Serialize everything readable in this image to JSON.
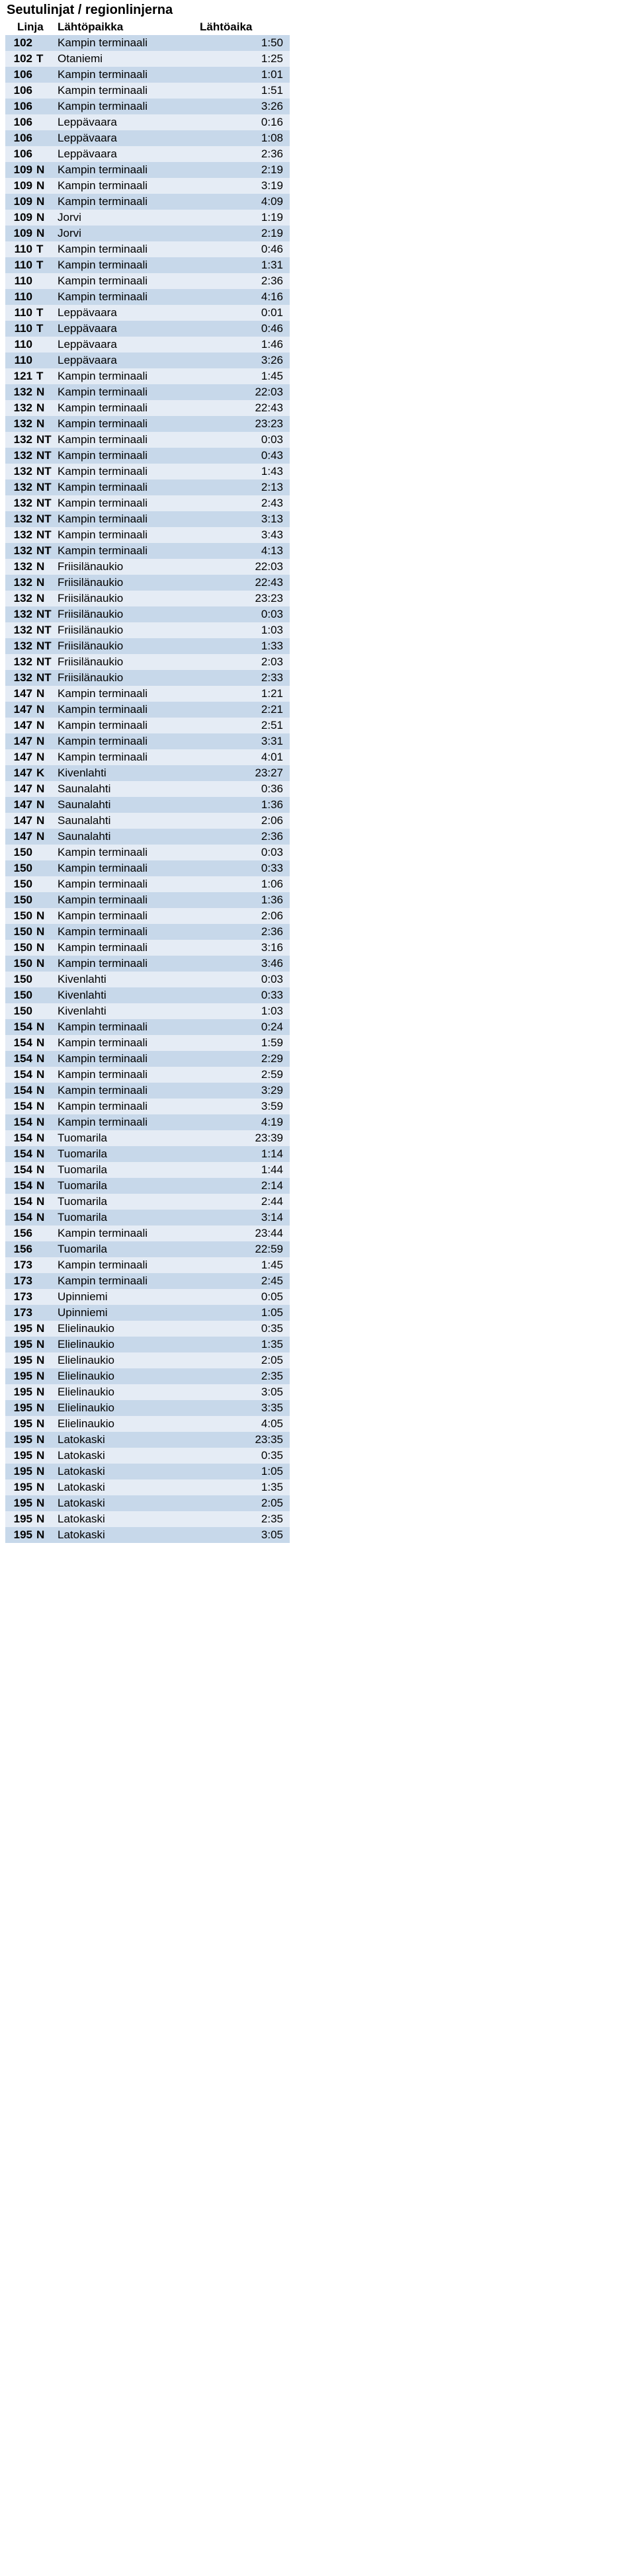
{
  "title": "Seutulinjat / regionlinjerna",
  "headers": {
    "linja": "Linja",
    "paikka": "Lähtöpaikka",
    "aika": "Lähtöaika"
  },
  "colors": {
    "odd": "#c7d8ea",
    "even": "#e5ecf5",
    "text": "#000000",
    "background": "#ffffff"
  },
  "rows": [
    {
      "line": "102",
      "suffix": "",
      "place": "Kampin terminaali",
      "time": "1:50"
    },
    {
      "line": "102",
      "suffix": "T",
      "place": "Otaniemi",
      "time": "1:25"
    },
    {
      "line": "106",
      "suffix": "",
      "place": "Kampin terminaali",
      "time": "1:01"
    },
    {
      "line": "106",
      "suffix": "",
      "place": "Kampin terminaali",
      "time": "1:51"
    },
    {
      "line": "106",
      "suffix": "",
      "place": "Kampin terminaali",
      "time": "3:26"
    },
    {
      "line": "106",
      "suffix": "",
      "place": "Leppävaara",
      "time": "0:16"
    },
    {
      "line": "106",
      "suffix": "",
      "place": "Leppävaara",
      "time": "1:08"
    },
    {
      "line": "106",
      "suffix": "",
      "place": "Leppävaara",
      "time": "2:36"
    },
    {
      "line": "109",
      "suffix": "N",
      "place": "Kampin terminaali",
      "time": "2:19"
    },
    {
      "line": "109",
      "suffix": "N",
      "place": "Kampin terminaali",
      "time": "3:19"
    },
    {
      "line": "109",
      "suffix": "N",
      "place": "Kampin terminaali",
      "time": "4:09"
    },
    {
      "line": "109",
      "suffix": "N",
      "place": "Jorvi",
      "time": "1:19"
    },
    {
      "line": "109",
      "suffix": "N",
      "place": "Jorvi",
      "time": "2:19"
    },
    {
      "line": "110",
      "suffix": "T",
      "place": "Kampin terminaali",
      "time": "0:46"
    },
    {
      "line": "110",
      "suffix": "T",
      "place": "Kampin terminaali",
      "time": "1:31"
    },
    {
      "line": "110",
      "suffix": "",
      "place": "Kampin terminaali",
      "time": "2:36"
    },
    {
      "line": "110",
      "suffix": "",
      "place": "Kampin terminaali",
      "time": "4:16"
    },
    {
      "line": "110",
      "suffix": "T",
      "place": "Leppävaara",
      "time": "0:01"
    },
    {
      "line": "110",
      "suffix": "T",
      "place": "Leppävaara",
      "time": "0:46"
    },
    {
      "line": "110",
      "suffix": "",
      "place": "Leppävaara",
      "time": "1:46"
    },
    {
      "line": "110",
      "suffix": "",
      "place": "Leppävaara",
      "time": "3:26"
    },
    {
      "line": "121",
      "suffix": "T",
      "place": "Kampin terminaali",
      "time": "1:45"
    },
    {
      "line": "132",
      "suffix": "N",
      "place": "Kampin terminaali",
      "time": "22:03"
    },
    {
      "line": "132",
      "suffix": "N",
      "place": "Kampin terminaali",
      "time": "22:43"
    },
    {
      "line": "132",
      "suffix": "N",
      "place": "Kampin terminaali",
      "time": "23:23"
    },
    {
      "line": "132",
      "suffix": "NT",
      "place": "Kampin terminaali",
      "time": "0:03"
    },
    {
      "line": "132",
      "suffix": "NT",
      "place": "Kampin terminaali",
      "time": "0:43"
    },
    {
      "line": "132",
      "suffix": "NT",
      "place": "Kampin terminaali",
      "time": "1:43"
    },
    {
      "line": "132",
      "suffix": "NT",
      "place": "Kampin terminaali",
      "time": "2:13"
    },
    {
      "line": "132",
      "suffix": "NT",
      "place": "Kampin terminaali",
      "time": "2:43"
    },
    {
      "line": "132",
      "suffix": "NT",
      "place": "Kampin terminaali",
      "time": "3:13"
    },
    {
      "line": "132",
      "suffix": "NT",
      "place": "Kampin terminaali",
      "time": "3:43"
    },
    {
      "line": "132",
      "suffix": "NT",
      "place": "Kampin terminaali",
      "time": "4:13"
    },
    {
      "line": "132",
      "suffix": "N",
      "place": "Friisilänaukio",
      "time": "22:03"
    },
    {
      "line": "132",
      "suffix": "N",
      "place": "Friisilänaukio",
      "time": "22:43"
    },
    {
      "line": "132",
      "suffix": "N",
      "place": "Friisilänaukio",
      "time": "23:23"
    },
    {
      "line": "132",
      "suffix": "NT",
      "place": "Friisilänaukio",
      "time": "0:03"
    },
    {
      "line": "132",
      "suffix": "NT",
      "place": "Friisilänaukio",
      "time": "1:03"
    },
    {
      "line": "132",
      "suffix": "NT",
      "place": "Friisilänaukio",
      "time": "1:33"
    },
    {
      "line": "132",
      "suffix": "NT",
      "place": "Friisilänaukio",
      "time": "2:03"
    },
    {
      "line": "132",
      "suffix": "NT",
      "place": "Friisilänaukio",
      "time": "2:33"
    },
    {
      "line": "147",
      "suffix": "N",
      "place": "Kampin terminaali",
      "time": "1:21"
    },
    {
      "line": "147",
      "suffix": "N",
      "place": "Kampin terminaali",
      "time": "2:21"
    },
    {
      "line": "147",
      "suffix": "N",
      "place": "Kampin terminaali",
      "time": "2:51"
    },
    {
      "line": "147",
      "suffix": "N",
      "place": "Kampin terminaali",
      "time": "3:31"
    },
    {
      "line": "147",
      "suffix": "N",
      "place": "Kampin terminaali",
      "time": "4:01"
    },
    {
      "line": "147",
      "suffix": "K",
      "place": "Kivenlahti",
      "time": "23:27"
    },
    {
      "line": "147",
      "suffix": "N",
      "place": "Saunalahti",
      "time": "0:36"
    },
    {
      "line": "147",
      "suffix": "N",
      "place": "Saunalahti",
      "time": "1:36"
    },
    {
      "line": "147",
      "suffix": "N",
      "place": "Saunalahti",
      "time": "2:06"
    },
    {
      "line": "147",
      "suffix": "N",
      "place": "Saunalahti",
      "time": "2:36"
    },
    {
      "line": "150",
      "suffix": "",
      "place": "Kampin terminaali",
      "time": "0:03"
    },
    {
      "line": "150",
      "suffix": "",
      "place": "Kampin terminaali",
      "time": "0:33"
    },
    {
      "line": "150",
      "suffix": "",
      "place": "Kampin terminaali",
      "time": "1:06"
    },
    {
      "line": "150",
      "suffix": "",
      "place": "Kampin terminaali",
      "time": "1:36"
    },
    {
      "line": "150",
      "suffix": "N",
      "place": "Kampin terminaali",
      "time": "2:06"
    },
    {
      "line": "150",
      "suffix": "N",
      "place": "Kampin terminaali",
      "time": "2:36"
    },
    {
      "line": "150",
      "suffix": "N",
      "place": "Kampin terminaali",
      "time": "3:16"
    },
    {
      "line": "150",
      "suffix": "N",
      "place": "Kampin terminaali",
      "time": "3:46"
    },
    {
      "line": "150",
      "suffix": "",
      "place": "Kivenlahti",
      "time": "0:03"
    },
    {
      "line": "150",
      "suffix": "",
      "place": "Kivenlahti",
      "time": "0:33"
    },
    {
      "line": "150",
      "suffix": "",
      "place": "Kivenlahti",
      "time": "1:03"
    },
    {
      "line": "154",
      "suffix": "N",
      "place": "Kampin terminaali",
      "time": "0:24"
    },
    {
      "line": "154",
      "suffix": "N",
      "place": "Kampin terminaali",
      "time": "1:59"
    },
    {
      "line": "154",
      "suffix": "N",
      "place": "Kampin terminaali",
      "time": "2:29"
    },
    {
      "line": "154",
      "suffix": "N",
      "place": "Kampin terminaali",
      "time": "2:59"
    },
    {
      "line": "154",
      "suffix": "N",
      "place": "Kampin terminaali",
      "time": "3:29"
    },
    {
      "line": "154",
      "suffix": "N",
      "place": "Kampin terminaali",
      "time": "3:59"
    },
    {
      "line": "154",
      "suffix": "N",
      "place": "Kampin terminaali",
      "time": "4:19"
    },
    {
      "line": "154",
      "suffix": "N",
      "place": "Tuomarila",
      "time": "23:39"
    },
    {
      "line": "154",
      "suffix": "N",
      "place": "Tuomarila",
      "time": "1:14"
    },
    {
      "line": "154",
      "suffix": "N",
      "place": "Tuomarila",
      "time": "1:44"
    },
    {
      "line": "154",
      "suffix": "N",
      "place": "Tuomarila",
      "time": "2:14"
    },
    {
      "line": "154",
      "suffix": "N",
      "place": "Tuomarila",
      "time": "2:44"
    },
    {
      "line": "154",
      "suffix": "N",
      "place": "Tuomarila",
      "time": "3:14"
    },
    {
      "line": "156",
      "suffix": "",
      "place": "Kampin terminaali",
      "time": "23:44"
    },
    {
      "line": "156",
      "suffix": "",
      "place": "Tuomarila",
      "time": "22:59"
    },
    {
      "line": "173",
      "suffix": "",
      "place": "Kampin terminaali",
      "time": "1:45"
    },
    {
      "line": "173",
      "suffix": "",
      "place": "Kampin terminaali",
      "time": "2:45"
    },
    {
      "line": "173",
      "suffix": "",
      "place": "Upinniemi",
      "time": "0:05"
    },
    {
      "line": "173",
      "suffix": "",
      "place": "Upinniemi",
      "time": "1:05"
    },
    {
      "line": "195",
      "suffix": "N",
      "place": "Elielinaukio",
      "time": "0:35"
    },
    {
      "line": "195",
      "suffix": "N",
      "place": "Elielinaukio",
      "time": "1:35"
    },
    {
      "line": "195",
      "suffix": "N",
      "place": "Elielinaukio",
      "time": "2:05"
    },
    {
      "line": "195",
      "suffix": "N",
      "place": "Elielinaukio",
      "time": "2:35"
    },
    {
      "line": "195",
      "suffix": "N",
      "place": "Elielinaukio",
      "time": "3:05"
    },
    {
      "line": "195",
      "suffix": "N",
      "place": "Elielinaukio",
      "time": "3:35"
    },
    {
      "line": "195",
      "suffix": "N",
      "place": "Elielinaukio",
      "time": "4:05"
    },
    {
      "line": "195",
      "suffix": "N",
      "place": "Latokaski",
      "time": "23:35"
    },
    {
      "line": "195",
      "suffix": "N",
      "place": "Latokaski",
      "time": "0:35"
    },
    {
      "line": "195",
      "suffix": "N",
      "place": "Latokaski",
      "time": "1:05"
    },
    {
      "line": "195",
      "suffix": "N",
      "place": "Latokaski",
      "time": "1:35"
    },
    {
      "line": "195",
      "suffix": "N",
      "place": "Latokaski",
      "time": "2:05"
    },
    {
      "line": "195",
      "suffix": "N",
      "place": "Latokaski",
      "time": "2:35"
    },
    {
      "line": "195",
      "suffix": "N",
      "place": "Latokaski",
      "time": "3:05"
    }
  ]
}
